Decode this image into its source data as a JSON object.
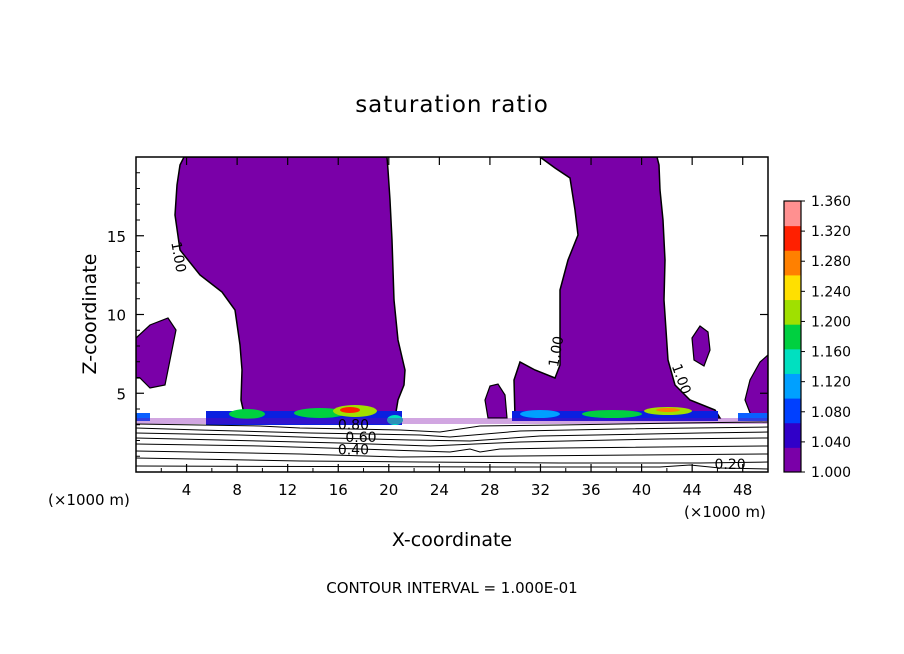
{
  "chart_data": {
    "type": "contour",
    "title": "saturation ratio",
    "xlabel": "X-coordinate",
    "ylabel": "Z-coordinate",
    "x_unit_left": "(×1000 m)",
    "x_unit_right": "(×1000 m)",
    "xlim": [
      0,
      50
    ],
    "ylim": [
      0,
      20
    ],
    "x_ticks": [
      4,
      8,
      12,
      16,
      20,
      24,
      28,
      32,
      36,
      40,
      44,
      48
    ],
    "y_ticks": [
      5,
      10,
      15
    ],
    "footer": "CONTOUR INTERVAL = 1.000E-01",
    "colorbar": {
      "min": 1.0,
      "max": 1.36,
      "ticks": [
        "1.360",
        "1.320",
        "1.280",
        "1.240",
        "1.200",
        "1.160",
        "1.120",
        "1.080",
        "1.040",
        "1.000"
      ],
      "colors": [
        "#7a00a8",
        "#3000c8",
        "#0040ff",
        "#00a0ff",
        "#00e0c0",
        "#00d040",
        "#a0e000",
        "#ffe000",
        "#ff8000",
        "#ff2000",
        "#ff9090"
      ]
    },
    "contour_labels": [
      {
        "text": "1.00",
        "x": 3.0,
        "z": 13.6,
        "angle": 80
      },
      {
        "text": "1.00",
        "x": 33.6,
        "z": 7.6,
        "angle": -80
      },
      {
        "text": "1.00",
        "x": 42.8,
        "z": 5.8,
        "angle": 70
      },
      {
        "text": "0.80",
        "x": 17.2,
        "z": 2.7,
        "angle": 0
      },
      {
        "text": "0.60",
        "x": 17.8,
        "z": 1.9,
        "angle": 0
      },
      {
        "text": "0.40",
        "x": 17.2,
        "z": 1.1,
        "angle": 0
      },
      {
        "text": "0.20",
        "x": 47.0,
        "z": 0.2,
        "angle": 0
      }
    ],
    "supersaturated_regions": [
      {
        "x": [
          3.0,
          20.5
        ],
        "z": [
          3.2,
          20
        ]
      },
      {
        "x": [
          30.0,
          46.0
        ],
        "z": [
          3.2,
          20
        ]
      }
    ],
    "colors": {
      "plume": "#7a00a8",
      "line": "#000000"
    }
  }
}
